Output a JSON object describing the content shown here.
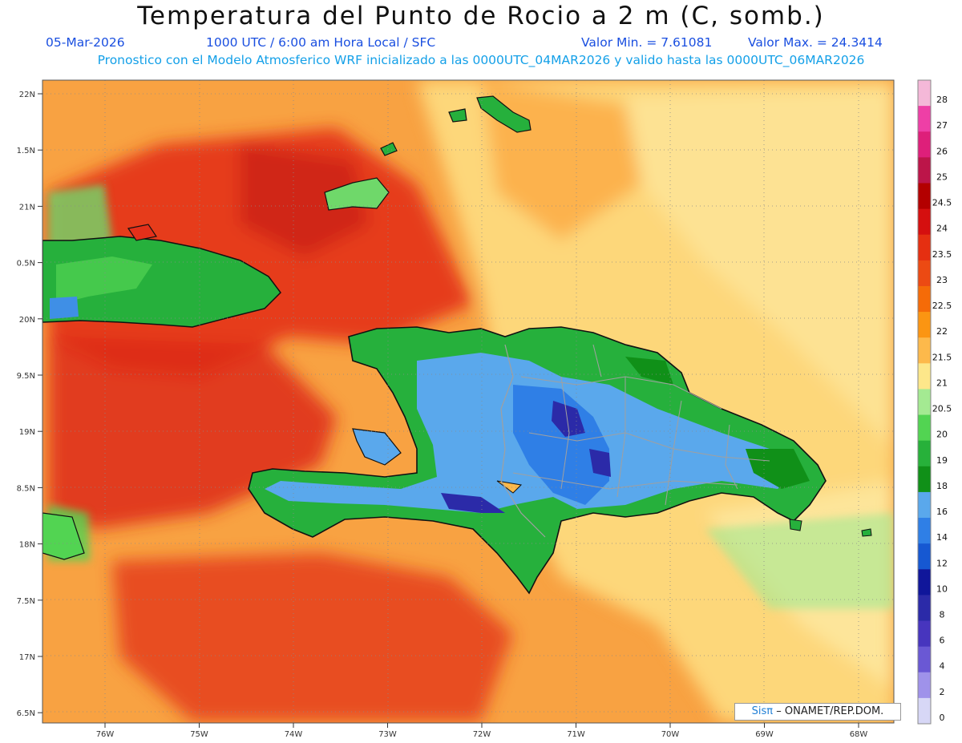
{
  "title": "Temperatura del Punto de Rocio a 2 m (C, somb.)",
  "date": "05-Mar-2026",
  "time_info": "1000 UTC / 6:00 am Hora Local / SFC",
  "value_min": "Valor Min. = 7.61081",
  "value_max": "Valor Max. = 24.3414",
  "forecast_note": "Pronostico con el Modelo Atmosferico WRF inicializado a las 0000UTC_04MAR2026 y valido hasta las  0000UTC_06MAR2026",
  "lat_labels": [
    "22N",
    "1.5N",
    "21N",
    "0.5N",
    "20N",
    "9.5N",
    "19N",
    "8.5N",
    "18N",
    "7.5N",
    "17N",
    "6.5N"
  ],
  "lon_labels": [
    "76W",
    "75W",
    "74W",
    "73W",
    "72W",
    "71W",
    "70W",
    "69W",
    "68W"
  ],
  "colorbar": {
    "labels": [
      "28",
      "27",
      "26",
      "25",
      "24.5",
      "24",
      "23.5",
      "23",
      "22.5",
      "22",
      "21.5",
      "21",
      "20.5",
      "20",
      "19",
      "18",
      "16",
      "14",
      "12",
      "10",
      "8",
      "6",
      "4",
      "2",
      "0"
    ],
    "colors": [
      "#f4b8d8",
      "#ee3fa6",
      "#de1f7a",
      "#bc1549",
      "#b30000",
      "#d50f0f",
      "#e52f11",
      "#ec4a13",
      "#f56b08",
      "#fb9512",
      "#fdb94b",
      "#fde78a",
      "#a4ea92",
      "#52d452",
      "#27b13a",
      "#109018",
      "#5aa8ec",
      "#2f7fe6",
      "#1658d2",
      "#10169a",
      "#2b2aa8",
      "#4735be",
      "#6a58d4",
      "#9f92ea",
      "#d7d7f6"
    ]
  },
  "credit": {
    "brand": "Sisπ",
    "text": "– ONAMET/REP.DOM."
  },
  "colors": {
    "sea_orange": "#f8a242",
    "sea_red": "#e3301a",
    "land_green": "#26b03c",
    "land_blue": "#5aa8ec",
    "land_deep": "#2b2aa8"
  }
}
